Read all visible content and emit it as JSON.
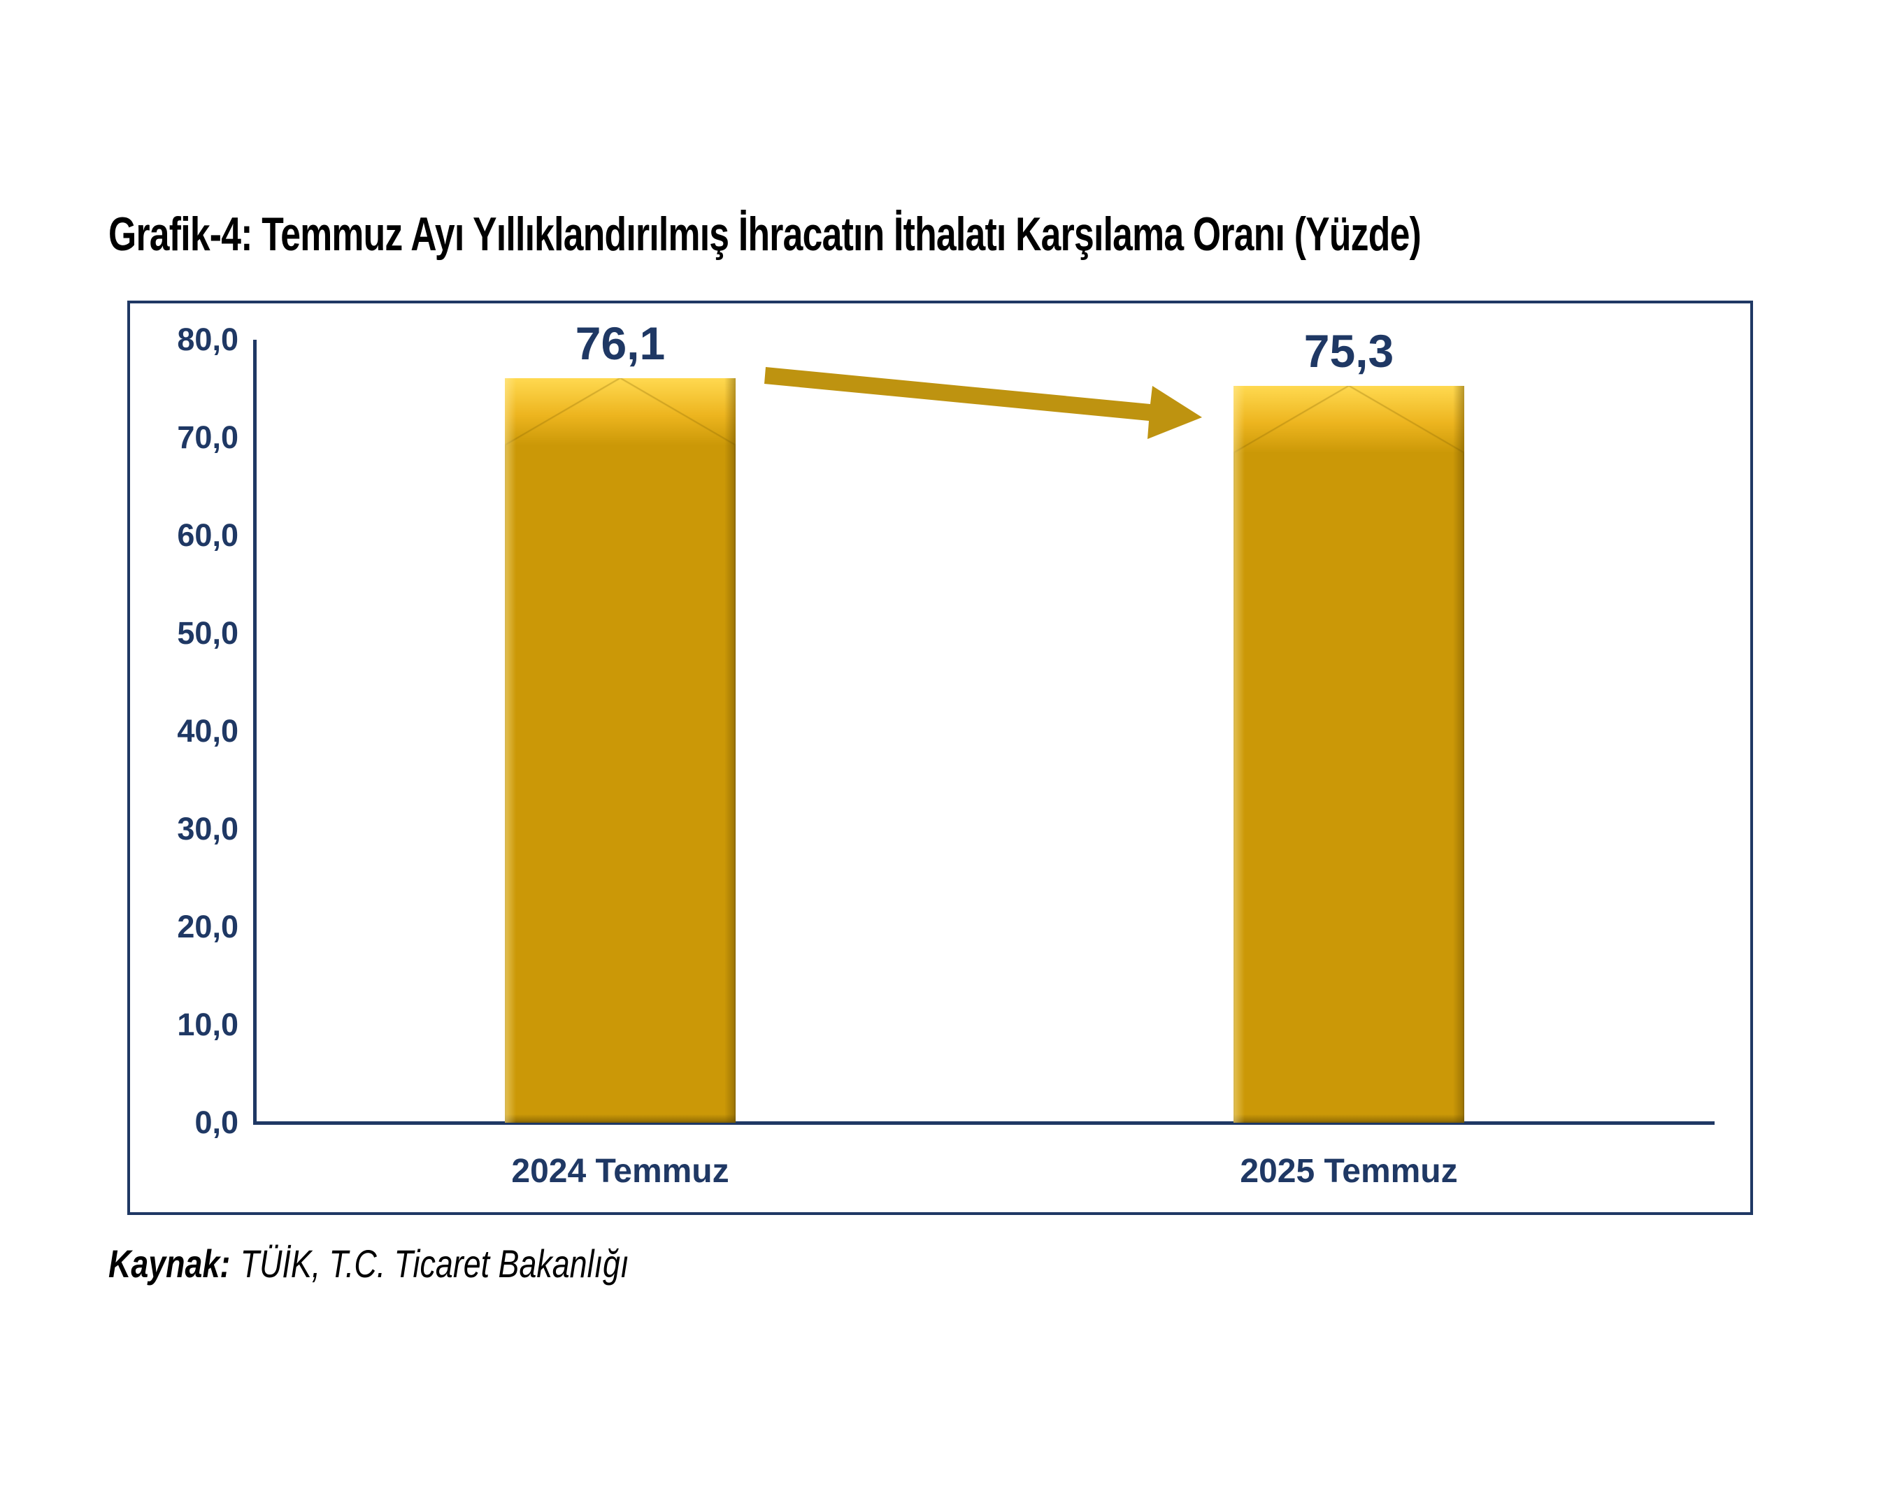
{
  "title": "Grafik-4: Temmuz Ayı Yıllıklandırılmış İhracatın İthalatı Karşılama Oranı (Yüzde)",
  "source": {
    "label": "Kaynak:",
    "text": "TÜİK, T.C. Ticaret Bakanlığı"
  },
  "chart_data": {
    "type": "bar",
    "title": "Grafik-4: Temmuz Ayı Yıllıklandırılmış İhracatın İthalatı Karşılama Oranı (Yüzde)",
    "categories": [
      "2024 Temmuz",
      "2025 Temmuz"
    ],
    "values": [
      76.1,
      75.3
    ],
    "value_labels": [
      "76,1",
      "75,3"
    ],
    "xlabel": "",
    "ylabel": "",
    "ylim": [
      0,
      80
    ],
    "yticks": [
      {
        "label": "80,0",
        "value": 80
      },
      {
        "label": "70,0",
        "value": 70
      },
      {
        "label": "60,0",
        "value": 60
      },
      {
        "label": "50,0",
        "value": 50
      },
      {
        "label": "40,0",
        "value": 40
      },
      {
        "label": "30,0",
        "value": 30
      },
      {
        "label": "20,0",
        "value": 20
      },
      {
        "label": "10,0",
        "value": 10
      },
      {
        "label": "0,0",
        "value": 0
      }
    ],
    "grid": false,
    "legend": "none",
    "plot_border": true,
    "decimal_separator": ",",
    "annotation": "gold arrow from 2024 bar top to 2025 bar top indicating slight decline",
    "colors": {
      "bar": "#CB9807",
      "bar_highlight": "#FFD950",
      "arrow": "#BE9310",
      "text_navy": "#1F3864",
      "border": "#1F3864",
      "title_text": "#000000"
    }
  }
}
